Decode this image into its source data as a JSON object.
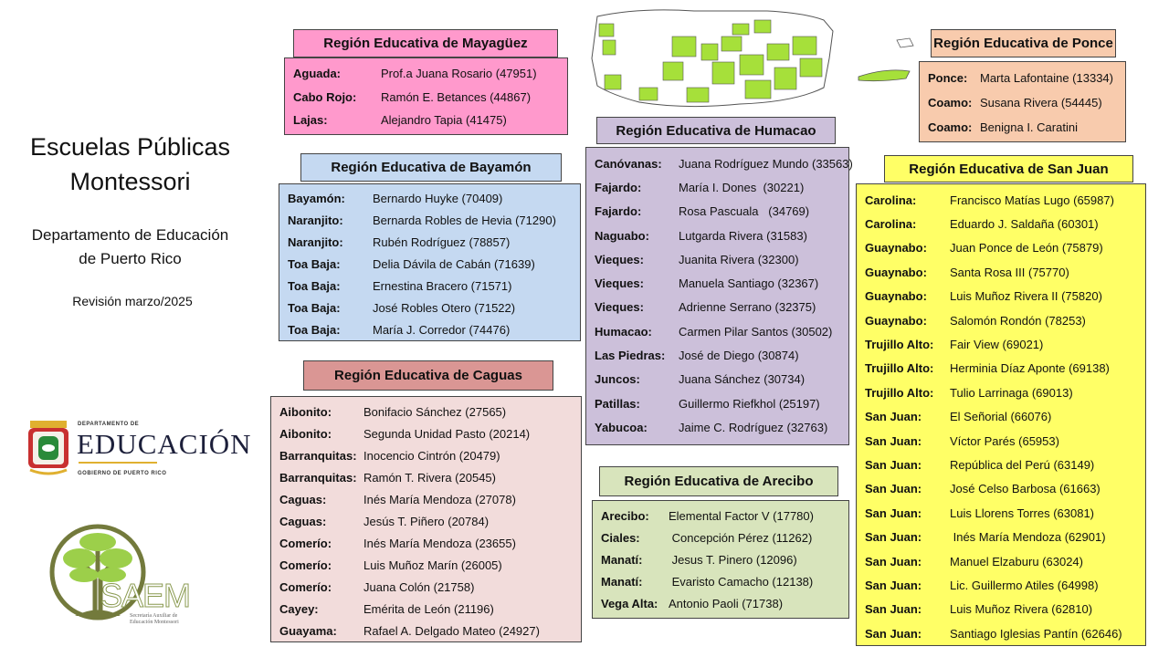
{
  "title": {
    "line1": "Escuelas Públicas",
    "line2": "Montessori"
  },
  "department": {
    "line1": "Departamento de Educación",
    "line2": "de Puerto Rico"
  },
  "revision": "Revisión marzo/2025",
  "logos": {
    "de": {
      "top": "DEPARTAMENTO DE",
      "main": "EDUCACIÓN",
      "bottom": "GOBIERNO DE PUERTO RICO"
    },
    "saem": {
      "main": "SAEM",
      "sub1": "Secretaría Auxiliar de",
      "sub2": "Educación Montessori"
    }
  },
  "colors": {
    "map_green": "#a6e03a"
  },
  "regions": [
    {
      "id": "mayaguez",
      "title": "Región Educativa de Mayagüez",
      "header_color": "#ff99cc",
      "body_color": "#ff99cc",
      "rows": [
        [
          "Aguada:",
          "Prof.a Juana Rosario (47951)"
        ],
        [
          "Cabo Rojo:",
          "Ramón E. Betances (44867)"
        ],
        [
          "Lajas:",
          "Alejandro Tapia (41475)"
        ]
      ]
    },
    {
      "id": "ponce",
      "title": "Región Educativa de Ponce",
      "header_color": "#f8cbad",
      "body_color": "#f8cbad",
      "rows": [
        [
          "Ponce:",
          "Marta Lafontaine (13334)"
        ],
        [
          "Coamo:",
          "Susana Rivera (54445)"
        ],
        [
          "Coamo:",
          "Benigna I. Caratini"
        ]
      ]
    },
    {
      "id": "humacao",
      "title": "Región Educativa de Humacao",
      "header_color": "#ccc0da",
      "body_color": "#ccc0da",
      "rows": [
        [
          "Canóvanas:",
          "Juana Rodríguez Mundo (33563)"
        ],
        [
          "Fajardo:",
          "María I. Dones  (30221)"
        ],
        [
          "Fajardo:",
          "Rosa Pascuala   (34769)"
        ],
        [
          "Naguabo:",
          "Lutgarda Rivera (31583)"
        ],
        [
          "Vieques:",
          "Juanita Rivera (32300)"
        ],
        [
          "Vieques:",
          "Manuela Santiago (32367)"
        ],
        [
          "Vieques:",
          "Adrienne Serrano (32375)"
        ],
        [
          "Humacao:",
          "Carmen Pilar Santos (30502)"
        ],
        [
          "Las Piedras:",
          "José de Diego (30874)"
        ],
        [
          "Juncos:",
          "Juana Sánchez (30734)"
        ],
        [
          "Patillas:",
          "Guillermo Riefkhol (25197)"
        ],
        [
          "Yabucoa:",
          "Jaime C. Rodríguez (32763)"
        ]
      ]
    },
    {
      "id": "bayamon",
      "title": "Región Educativa de Bayamón",
      "header_color": "#c5d9f1",
      "body_color": "#c5d9f1",
      "rows": [
        [
          "Bayamón:",
          "Bernardo Huyke (70409)"
        ],
        [
          "Naranjito:",
          "Bernarda Robles de Hevia (71290)"
        ],
        [
          "Naranjito:",
          "Rubén Rodríguez (78857)"
        ],
        [
          "Toa Baja:",
          "Delia Dávila de Cabán (71639)"
        ],
        [
          "Toa Baja:",
          "Ernestina Bracero (71571)"
        ],
        [
          "Toa Baja:",
          "José Robles Otero (71522)"
        ],
        [
          "Toa Baja:",
          "María J. Corredor (74476)"
        ]
      ]
    },
    {
      "id": "sanjuan",
      "title": "Región Educativa de San Juan",
      "header_color": "#ffff66",
      "body_color": "#ffff66",
      "rows": [
        [
          "Carolina:",
          "Francisco Matías Lugo (65987)"
        ],
        [
          "Carolina:",
          "Eduardo J. Saldaña (60301)"
        ],
        [
          "Guaynabo:",
          "Juan Ponce de León (75879)"
        ],
        [
          "Guaynabo:",
          "Santa Rosa III (75770)"
        ],
        [
          "Guaynabo:",
          "Luis Muñoz Rivera II (75820)"
        ],
        [
          "Guaynabo:",
          "Salomón Rondón (78253)"
        ],
        [
          "Trujillo Alto:",
          "Fair View (69021)"
        ],
        [
          "Trujillo Alto:",
          "Herminia Díaz Aponte (69138)"
        ],
        [
          "Trujillo Alto:",
          "Tulio Larrinaga (69013)"
        ],
        [
          "San Juan:",
          "El Señorial (66076)"
        ],
        [
          "San Juan:",
          "Víctor Parés (65953)"
        ],
        [
          "San Juan:",
          "República del Perú (63149)"
        ],
        [
          "San Juan:",
          "José Celso Barbosa (61663)"
        ],
        [
          "San Juan:",
          "Luis Llorens Torres (63081)"
        ],
        [
          "San Juan:",
          " Inés María Mendoza (62901)"
        ],
        [
          "San Juan:",
          "Manuel Elzaburu (63024)"
        ],
        [
          "San Juan:",
          "Lic. Guillermo Atiles (64998)"
        ],
        [
          "San Juan:",
          "Luis Muñoz Rivera (62810)"
        ],
        [
          "San Juan:",
          "Santiago Iglesias Pantín (62646)"
        ]
      ]
    },
    {
      "id": "caguas",
      "title": "Región Educativa de Caguas",
      "header_color": "#da9694",
      "body_color": "#f2dcdb",
      "rows": [
        [
          "Aibonito:",
          "Bonifacio Sánchez (27565)"
        ],
        [
          "Aibonito:",
          "Segunda Unidad Pasto (20214)"
        ],
        [
          "Barranquitas:",
          "Inocencio Cintrón (20479)"
        ],
        [
          "Barranquitas:",
          "Ramón T. Rivera (20545)"
        ],
        [
          "Caguas:",
          "Inés María Mendoza (27078)"
        ],
        [
          "Caguas:",
          "Jesús T. Piñero (20784)"
        ],
        [
          "Comerío:",
          "Inés María Mendoza (23655)"
        ],
        [
          "Comerío:",
          "Luis Muñoz Marín (26005)"
        ],
        [
          "Comerío:",
          "Juana Colón (21758)"
        ],
        [
          "Cayey:",
          "Emérita de León (21196)"
        ],
        [
          "Guayama:",
          "Rafael A. Delgado Mateo (24927)"
        ]
      ]
    },
    {
      "id": "arecibo",
      "title": "Región Educativa de Arecibo",
      "header_color": "#d8e4bc",
      "body_color": "#d8e4bc",
      "rows": [
        [
          "Arecibo:",
          "Elemental Factor V (17780)"
        ],
        [
          "Ciales:",
          " Concepción Pérez (11262)"
        ],
        [
          "Manatí:",
          " Jesus T. Pinero (12096)"
        ],
        [
          "Manatí:",
          " Evaristo Camacho (12138)"
        ],
        [
          "Vega Alta:",
          "Antonio Paoli (71738)"
        ]
      ]
    }
  ]
}
